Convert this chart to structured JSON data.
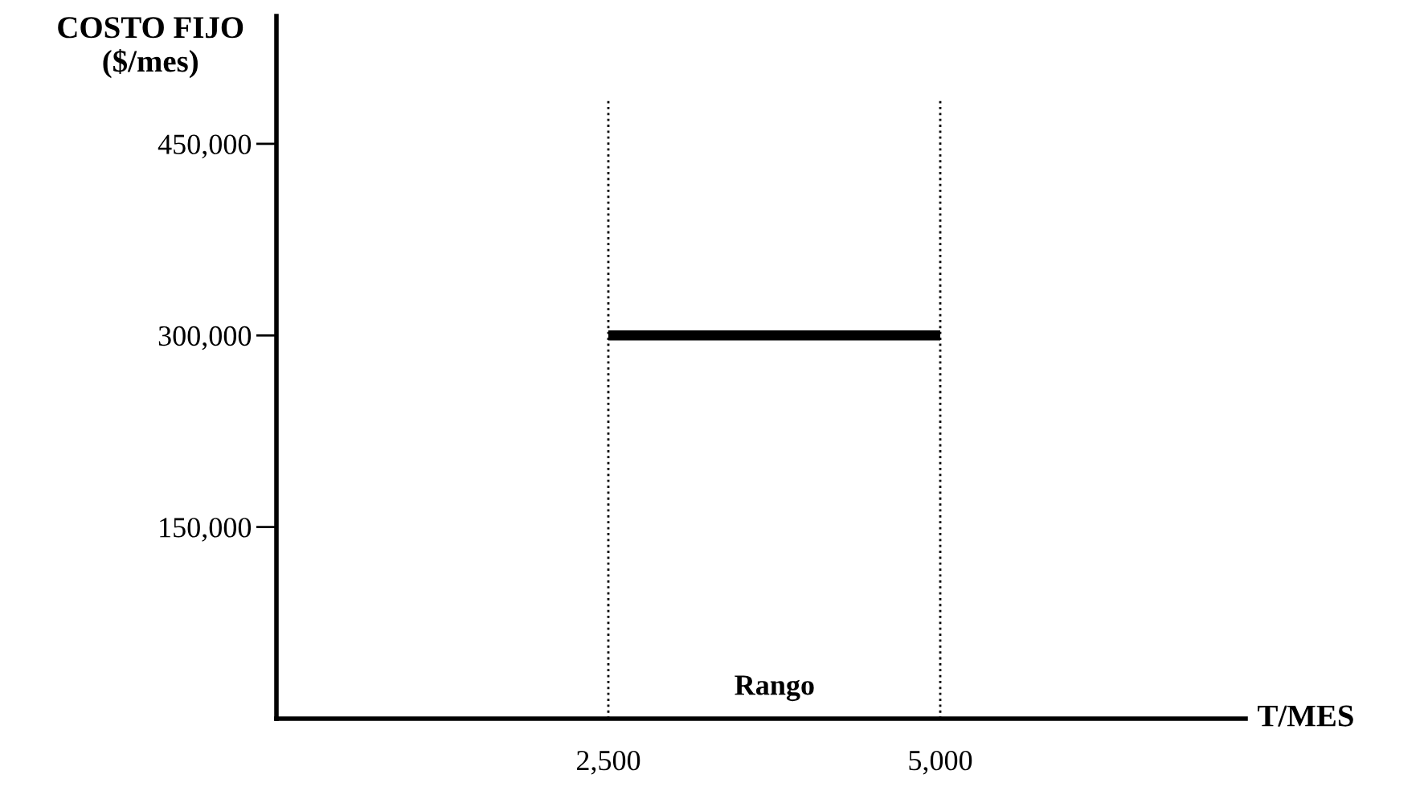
{
  "chart_data": {
    "type": "line",
    "xlabel": "T/MES",
    "ylabel": "COSTO FIJO\n($/mes)",
    "x": [
      2500,
      5000
    ],
    "series": [
      {
        "color": "#000000",
        "values": [
          300000,
          300000
        ]
      }
    ],
    "xlim": [
      0,
      7300
    ],
    "ylim": [
      0,
      550000
    ],
    "xticks": [
      {
        "value": 2500,
        "label": "2,500"
      },
      {
        "value": 5000,
        "label": "5,000"
      }
    ],
    "yticks": [
      {
        "value": 150000,
        "label": "150,000"
      },
      {
        "value": 300000,
        "label": "300,000"
      },
      {
        "value": 450000,
        "label": "450,000"
      }
    ],
    "ref_lines": [
      {
        "axis": "x",
        "value": 2500,
        "color": "#000000",
        "line_style": "dotted"
      },
      {
        "axis": "x",
        "value": 5000,
        "color": "#000000",
        "line_style": "dotted"
      }
    ],
    "annotations": [
      "Rango"
    ],
    "grid": false,
    "legend": false,
    "marker": "none",
    "line_style": "solid"
  }
}
